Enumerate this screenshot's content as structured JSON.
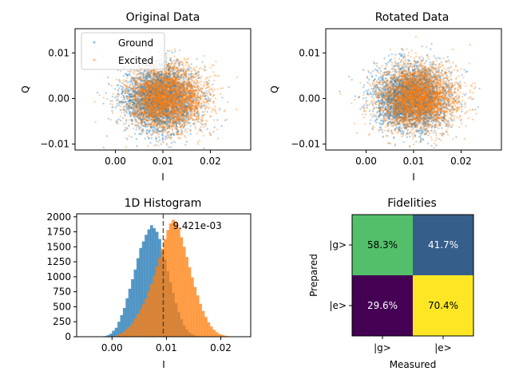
{
  "figure": {
    "background": "#ffffff"
  },
  "chart_data": [
    {
      "type": "scatter",
      "title": "Original Data",
      "xlabel": "I",
      "ylabel": "Q",
      "xlim": [
        -0.0085,
        0.0285
      ],
      "ylim": [
        -0.0113,
        0.0153
      ],
      "xticks": [
        0.0,
        0.01,
        0.02
      ],
      "xtick_labels": [
        "0.00",
        "0.01",
        "0.02"
      ],
      "yticks": [
        -0.01,
        0.0,
        0.01
      ],
      "ytick_labels": [
        "−0.01",
        "0.00",
        "0.01"
      ],
      "grid": false,
      "legend": {
        "position": "top-left",
        "entries": [
          "Ground",
          "Excited"
        ]
      },
      "series": [
        {
          "name": "Ground",
          "color": "#1f77b4",
          "center": [
            0.0095,
            0.0
          ],
          "spread": [
            0.0038,
            0.0035
          ]
        },
        {
          "name": "Excited",
          "color": "#ff7f0e",
          "center": [
            0.0108,
            0.0001
          ],
          "spread": [
            0.0042,
            0.0036
          ]
        }
      ]
    },
    {
      "type": "scatter",
      "title": "Rotated Data",
      "xlabel": "I",
      "ylabel": "Q",
      "xlim": [
        -0.0085,
        0.0285
      ],
      "ylim": [
        -0.0113,
        0.0153
      ],
      "xticks": [
        0.0,
        0.01,
        0.02
      ],
      "xtick_labels": [
        "0.00",
        "0.01",
        "0.02"
      ],
      "yticks": [
        -0.01,
        0.0,
        0.01
      ],
      "ytick_labels": [
        "−0.01",
        "0.00",
        "0.01"
      ],
      "grid": false,
      "series": [
        {
          "name": "Ground",
          "color": "#1f77b4",
          "center": [
            0.0095,
            0.0
          ],
          "spread": [
            0.0038,
            0.0035
          ]
        },
        {
          "name": "Excited",
          "color": "#ff7f0e",
          "center": [
            0.0108,
            0.0001
          ],
          "spread": [
            0.0042,
            0.0036
          ]
        }
      ]
    },
    {
      "type": "bar",
      "subtype": "histogram",
      "title": "1D Histogram",
      "xlabel": "I",
      "ylabel": "",
      "xlim": [
        -0.0065,
        0.0255
      ],
      "ylim": [
        0,
        2050
      ],
      "xticks": [
        0.0,
        0.01,
        0.02
      ],
      "xtick_labels": [
        "0.00",
        "0.01",
        "0.02"
      ],
      "yticks": [
        0,
        250,
        500,
        750,
        1000,
        1250,
        1500,
        1750,
        2000
      ],
      "ytick_labels": [
        "0",
        "250",
        "500",
        "750",
        "1000",
        "1250",
        "1500",
        "1750",
        "2000"
      ],
      "threshold": 0.009421,
      "threshold_label": "9.421e-03",
      "bin_edges": [
        -0.0015,
        -0.001,
        -0.0005,
        0.0,
        0.0005,
        0.001,
        0.0015,
        0.002,
        0.0025,
        0.003,
        0.0035,
        0.004,
        0.0045,
        0.005,
        0.0055,
        0.006,
        0.0065,
        0.007,
        0.0075,
        0.008,
        0.0085,
        0.009,
        0.0095,
        0.01,
        0.0105,
        0.011,
        0.0115,
        0.012,
        0.0125,
        0.013,
        0.0135,
        0.014,
        0.0145,
        0.015,
        0.0155,
        0.016,
        0.0165,
        0.017,
        0.0175,
        0.018,
        0.0185,
        0.019,
        0.0195,
        0.02,
        0.0205,
        0.021,
        0.0215,
        0.022,
        0.0225
      ],
      "series": [
        {
          "name": "Ground",
          "color": "#1f77b4",
          "values": [
            10,
            25,
            50,
            100,
            150,
            250,
            360,
            480,
            640,
            800,
            960,
            1120,
            1310,
            1480,
            1590,
            1700,
            1790,
            1860,
            1810,
            1750,
            1630,
            1420,
            1290,
            1090,
            910,
            730,
            560,
            410,
            290,
            190,
            120,
            70,
            40,
            20,
            10,
            5,
            2,
            0,
            0,
            0,
            0,
            0,
            0,
            0,
            0,
            0,
            0,
            0
          ]
        },
        {
          "name": "Excited",
          "color": "#ff7f0e",
          "values": [
            0,
            0,
            0,
            5,
            20,
            35,
            60,
            90,
            130,
            170,
            230,
            300,
            380,
            460,
            540,
            640,
            760,
            880,
            1020,
            1170,
            1320,
            1470,
            1630,
            1780,
            1890,
            1950,
            1920,
            1820,
            1660,
            1500,
            1330,
            1160,
            990,
            830,
            690,
            550,
            430,
            330,
            240,
            170,
            115,
            75,
            45,
            30,
            18,
            10,
            5,
            2
          ]
        }
      ]
    },
    {
      "type": "heatmap",
      "title": "Fidelities",
      "xlabel": "Measured",
      "ylabel": "Prepared",
      "x_categories": [
        "|g>",
        "|e>"
      ],
      "y_categories": [
        "|g>",
        "|e>"
      ],
      "values": [
        [
          58.3,
          41.7
        ],
        [
          29.6,
          70.4
        ]
      ],
      "cell_labels": [
        [
          "58.3%",
          "41.7%"
        ],
        [
          "29.6%",
          "70.4%"
        ]
      ],
      "colormap": "viridis"
    }
  ]
}
